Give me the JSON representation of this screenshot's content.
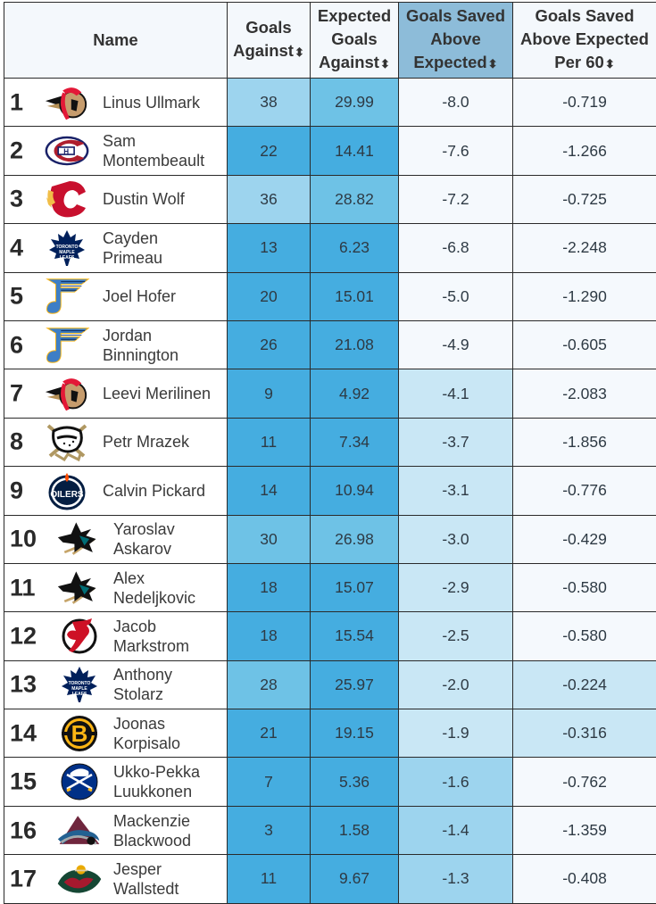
{
  "table": {
    "headers": [
      {
        "label": "Name",
        "sortable": false,
        "sorted": false
      },
      {
        "label": "Goals Against",
        "lines": [
          "Goals",
          "Against"
        ],
        "sortable": true,
        "sorted": false
      },
      {
        "label": "Expected Goals Against",
        "lines": [
          "Expected",
          "Goals",
          "Against"
        ],
        "sortable": true,
        "sorted": false
      },
      {
        "label": "Goals Saved Above Expected",
        "lines": [
          "Goals Saved",
          "Above",
          "Expected"
        ],
        "sortable": true,
        "sorted": true
      },
      {
        "label": "Goals Saved Above Expected Per 60",
        "lines": [
          "Goals Saved",
          "Above Expected",
          "Per 60"
        ],
        "sortable": true,
        "sorted": false
      }
    ],
    "sort_icon": "⬍",
    "colors": {
      "header_bg": "#f4f8fc",
      "header_sorted_bg": "#8dbcd9",
      "scale": [
        "#f5f9fd",
        "#c9e7f5",
        "#9dd4ee",
        "#6ec2e6",
        "#45ade0"
      ]
    },
    "rows": [
      {
        "rank": "1",
        "team": "ottawa-senators",
        "name": [
          "Linus Ullmark"
        ],
        "ga": "38",
        "xga": "29.99",
        "gsax": "-8.0",
        "gsax60": "-0.719",
        "shade": [
          2,
          3,
          0,
          0
        ]
      },
      {
        "rank": "2",
        "team": "montreal-canadiens",
        "name": [
          "Sam",
          "Montembeault"
        ],
        "ga": "22",
        "xga": "14.41",
        "gsax": "-7.6",
        "gsax60": "-1.266",
        "shade": [
          4,
          4,
          0,
          0
        ]
      },
      {
        "rank": "3",
        "team": "calgary-flames",
        "name": [
          "Dustin Wolf"
        ],
        "ga": "36",
        "xga": "28.82",
        "gsax": "-7.2",
        "gsax60": "-0.725",
        "shade": [
          2,
          3,
          0,
          0
        ]
      },
      {
        "rank": "4",
        "team": "toronto-maple-leafs",
        "name": [
          "Cayden",
          "Primeau"
        ],
        "ga": "13",
        "xga": "6.23",
        "gsax": "-6.8",
        "gsax60": "-2.248",
        "shade": [
          4,
          4,
          0,
          0
        ]
      },
      {
        "rank": "5",
        "team": "st-louis-blues",
        "name": [
          "Joel Hofer"
        ],
        "ga": "20",
        "xga": "15.01",
        "gsax": "-5.0",
        "gsax60": "-1.290",
        "shade": [
          4,
          4,
          0,
          0
        ]
      },
      {
        "rank": "6",
        "team": "st-louis-blues",
        "name": [
          "Jordan",
          "Binnington"
        ],
        "ga": "26",
        "xga": "21.08",
        "gsax": "-4.9",
        "gsax60": "-0.605",
        "shade": [
          4,
          4,
          0,
          0
        ]
      },
      {
        "rank": "7",
        "team": "ottawa-senators",
        "name": [
          "Leevi Merilinen"
        ],
        "ga": "9",
        "xga": "4.92",
        "gsax": "-4.1",
        "gsax60": "-2.083",
        "shade": [
          4,
          4,
          1,
          0
        ]
      },
      {
        "rank": "8",
        "team": "anaheim-ducks",
        "name": [
          "Petr Mrazek"
        ],
        "ga": "11",
        "xga": "7.34",
        "gsax": "-3.7",
        "gsax60": "-1.856",
        "shade": [
          4,
          4,
          1,
          0
        ]
      },
      {
        "rank": "9",
        "team": "edmonton-oilers",
        "name": [
          "Calvin Pickard"
        ],
        "ga": "14",
        "xga": "10.94",
        "gsax": "-3.1",
        "gsax60": "-0.776",
        "shade": [
          4,
          4,
          1,
          0
        ]
      },
      {
        "rank": "10",
        "team": "san-jose-sharks",
        "name": [
          "Yaroslav",
          "Askarov"
        ],
        "ga": "30",
        "xga": "26.98",
        "gsax": "-3.0",
        "gsax60": "-0.429",
        "shade": [
          3,
          3,
          1,
          0
        ]
      },
      {
        "rank": "11",
        "team": "san-jose-sharks",
        "name": [
          "Alex",
          "Nedeljkovic"
        ],
        "ga": "18",
        "xga": "15.07",
        "gsax": "-2.9",
        "gsax60": "-0.580",
        "shade": [
          4,
          4,
          1,
          0
        ]
      },
      {
        "rank": "12",
        "team": "new-jersey-devils",
        "name": [
          "Jacob",
          "Markstrom"
        ],
        "ga": "18",
        "xga": "15.54",
        "gsax": "-2.5",
        "gsax60": "-0.580",
        "shade": [
          4,
          4,
          1,
          0
        ]
      },
      {
        "rank": "13",
        "team": "toronto-maple-leafs",
        "name": [
          "Anthony",
          "Stolarz"
        ],
        "ga": "28",
        "xga": "25.97",
        "gsax": "-2.0",
        "gsax60": "-0.224",
        "shade": [
          3,
          4,
          1,
          1
        ]
      },
      {
        "rank": "14",
        "team": "boston-bruins",
        "name": [
          "Joonas",
          "Korpisalo"
        ],
        "ga": "21",
        "xga": "19.15",
        "gsax": "-1.9",
        "gsax60": "-0.316",
        "shade": [
          4,
          4,
          1,
          1
        ]
      },
      {
        "rank": "15",
        "team": "buffalo-sabres",
        "name": [
          "Ukko-Pekka",
          "Luukkonen"
        ],
        "ga": "7",
        "xga": "5.36",
        "gsax": "-1.6",
        "gsax60": "-0.762",
        "shade": [
          4,
          4,
          2,
          0
        ]
      },
      {
        "rank": "16",
        "team": "colorado-avalanche",
        "name": [
          "Mackenzie",
          "Blackwood"
        ],
        "ga": "3",
        "xga": "1.58",
        "gsax": "-1.4",
        "gsax60": "-1.359",
        "shade": [
          4,
          4,
          2,
          0
        ]
      },
      {
        "rank": "17",
        "team": "minnesota-wild",
        "name": [
          "Jesper",
          "Wallstedt"
        ],
        "ga": "11",
        "xga": "9.67",
        "gsax": "-1.3",
        "gsax60": "-0.408",
        "shade": [
          4,
          4,
          2,
          0
        ]
      }
    ]
  }
}
